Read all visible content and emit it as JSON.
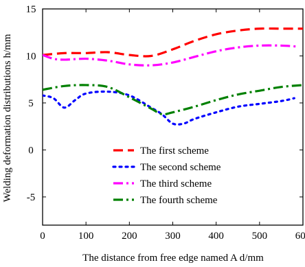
{
  "chart_data": {
    "type": "line",
    "title": "",
    "xlabel": "The distance from free edge named A d/mm",
    "ylabel": "Welding deformation distributions h/mm",
    "xlim": [
      0,
      600
    ],
    "ylim": [
      -8,
      15
    ],
    "x_ticks": [
      "0",
      "100",
      "200",
      "300",
      "400",
      "500",
      "600"
    ],
    "y_ticks": [
      "15",
      "10",
      "5",
      "0",
      "-5"
    ],
    "grid": false,
    "legend_position": "lower-center",
    "series": [
      {
        "name": "The first scheme",
        "color": "#ff0000",
        "dash": "dash",
        "x": [
          0,
          50,
          100,
          150,
          200,
          250,
          300,
          350,
          400,
          450,
          500,
          550,
          600
        ],
        "y": [
          10.1,
          10.3,
          10.3,
          10.4,
          10.1,
          10.0,
          10.7,
          11.6,
          12.3,
          12.7,
          12.9,
          12.9,
          12.9
        ]
      },
      {
        "name": "The second scheme",
        "color": "#0000ff",
        "dash": "dot",
        "x": [
          0,
          25,
          50,
          75,
          100,
          150,
          200,
          250,
          275,
          300,
          325,
          350,
          400,
          450,
          500,
          550,
          580
        ],
        "y": [
          5.8,
          5.5,
          4.5,
          5.3,
          6.0,
          6.2,
          5.8,
          4.5,
          3.8,
          2.8,
          2.8,
          3.3,
          4.0,
          4.6,
          4.9,
          5.2,
          5.5
        ]
      },
      {
        "name": "The third scheme",
        "color": "#ff00ff",
        "dash": "dashdot",
        "x": [
          0,
          25,
          50,
          100,
          150,
          200,
          250,
          300,
          350,
          400,
          450,
          500,
          550,
          585
        ],
        "y": [
          10.1,
          9.7,
          9.6,
          9.7,
          9.5,
          9.1,
          9.0,
          9.3,
          9.9,
          10.5,
          10.9,
          11.1,
          11.1,
          11.0
        ]
      },
      {
        "name": "The fourth scheme",
        "color": "#008000",
        "dash": "dashdot",
        "x": [
          0,
          50,
          100,
          150,
          200,
          250,
          275,
          300,
          350,
          400,
          450,
          500,
          550,
          600
        ],
        "y": [
          6.4,
          6.8,
          6.9,
          6.7,
          5.6,
          4.4,
          3.8,
          4.0,
          4.6,
          5.3,
          5.9,
          6.3,
          6.7,
          6.9
        ]
      }
    ]
  }
}
